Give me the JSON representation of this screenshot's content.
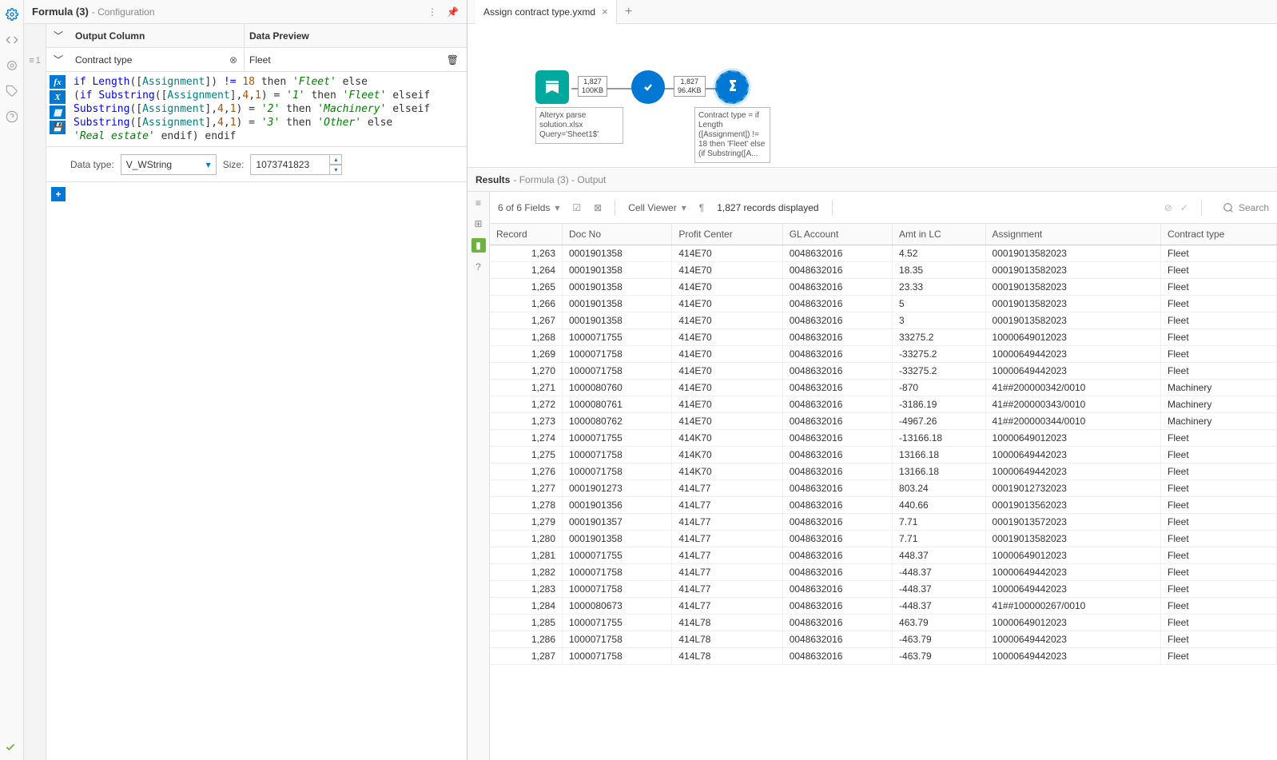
{
  "config": {
    "title": "Formula (3)",
    "subtitle": " - Configuration",
    "output_header": "Output Column",
    "preview_header": "Data Preview",
    "output_value": "Contract type",
    "preview_value": "Fleet",
    "row_num": "1",
    "datatype_label": "Data type:",
    "datatype_value": "V_WString",
    "size_label": "Size:",
    "size_value": "1073741823"
  },
  "formula_tokens": [
    [
      [
        "kw-kw",
        "if "
      ],
      [
        "kw-fn",
        "Length"
      ],
      [
        "",
        "(["
      ],
      [
        "kw-field",
        "Assignment"
      ],
      [
        "",
        "]) "
      ],
      [
        "kw-kw",
        "!= "
      ],
      [
        "kw-num",
        "18"
      ],
      [
        "",
        " then "
      ],
      [
        "kw-str",
        "'Fleet'"
      ],
      [
        "",
        " else"
      ]
    ],
    [
      [
        "",
        "("
      ],
      [
        "kw-kw",
        "if "
      ],
      [
        "kw-fn",
        "Substring"
      ],
      [
        "",
        "(["
      ],
      [
        "kw-field",
        "Assignment"
      ],
      [
        "",
        "],"
      ],
      [
        "kw-num",
        "4"
      ],
      [
        "",
        ","
      ],
      [
        "kw-num",
        "1"
      ],
      [
        "",
        ") = "
      ],
      [
        "kw-str",
        "'1'"
      ],
      [
        "",
        " then "
      ],
      [
        "kw-str",
        "'Fleet'"
      ],
      [
        "",
        " elseif"
      ]
    ],
    [
      [
        "kw-fn",
        "Substring"
      ],
      [
        "",
        "(["
      ],
      [
        "kw-field",
        "Assignment"
      ],
      [
        "",
        "],"
      ],
      [
        "kw-num",
        "4"
      ],
      [
        "",
        ","
      ],
      [
        "kw-num",
        "1"
      ],
      [
        "",
        ") = "
      ],
      [
        "kw-str",
        "'2'"
      ],
      [
        "",
        " then "
      ],
      [
        "kw-str",
        "'Machinery'"
      ],
      [
        "",
        " elseif"
      ]
    ],
    [
      [
        "kw-fn",
        "Substring"
      ],
      [
        "",
        "(["
      ],
      [
        "kw-field",
        "Assignment"
      ],
      [
        "",
        "],"
      ],
      [
        "kw-num",
        "4"
      ],
      [
        "",
        ","
      ],
      [
        "kw-num",
        "1"
      ],
      [
        "",
        ") = "
      ],
      [
        "kw-str",
        "'3'"
      ],
      [
        "",
        " then "
      ],
      [
        "kw-str",
        "'Other'"
      ],
      [
        "",
        " else"
      ]
    ],
    [
      [
        "kw-str",
        "'Real estate'"
      ],
      [
        "",
        " endif) endif"
      ]
    ]
  ],
  "tab": {
    "name": "Assign contract type.yxmd"
  },
  "canvas": {
    "input_caption": "Alteryx parse solution.xlsx\nQuery='Sheet1$'",
    "formula_caption": "Contract type = if Length ([Assignment]) != 18 then 'Fleet' else\n(if Substring([A...",
    "conn1_top": "1,827",
    "conn1_bot": "100KB",
    "conn2_top": "1,827",
    "conn2_bot": "96.4KB"
  },
  "results": {
    "title": "Results",
    "subtitle": " - Formula (3) - Output",
    "fields_label": "6 of 6 Fields",
    "cellviewer_label": "Cell Viewer",
    "records_label": "1,827 records displayed",
    "search_placeholder": "Search",
    "columns": [
      "Record",
      "Doc No",
      "Profit Center",
      "GL Account",
      "Amt in LC",
      "Assignment",
      "Contract type"
    ],
    "rows": [
      [
        "1,263",
        "0001901358",
        "414E70",
        "0048632016",
        "4.52",
        "00019013582023",
        "Fleet"
      ],
      [
        "1,264",
        "0001901358",
        "414E70",
        "0048632016",
        "18.35",
        "00019013582023",
        "Fleet"
      ],
      [
        "1,265",
        "0001901358",
        "414E70",
        "0048632016",
        "23.33",
        "00019013582023",
        "Fleet"
      ],
      [
        "1,266",
        "0001901358",
        "414E70",
        "0048632016",
        "5",
        "00019013582023",
        "Fleet"
      ],
      [
        "1,267",
        "0001901358",
        "414E70",
        "0048632016",
        "3",
        "00019013582023",
        "Fleet"
      ],
      [
        "1,268",
        "1000071755",
        "414E70",
        "0048632016",
        "33275.2",
        "10000649012023",
        "Fleet"
      ],
      [
        "1,269",
        "1000071758",
        "414E70",
        "0048632016",
        "-33275.2",
        "10000649442023",
        "Fleet"
      ],
      [
        "1,270",
        "1000071758",
        "414E70",
        "0048632016",
        "-33275.2",
        "10000649442023",
        "Fleet"
      ],
      [
        "1,271",
        "1000080760",
        "414E70",
        "0048632016",
        "-870",
        "41##200000342/0010",
        "Machinery"
      ],
      [
        "1,272",
        "1000080761",
        "414E70",
        "0048632016",
        "-3186.19",
        "41##200000343/0010",
        "Machinery"
      ],
      [
        "1,273",
        "1000080762",
        "414E70",
        "0048632016",
        "-4967.26",
        "41##200000344/0010",
        "Machinery"
      ],
      [
        "1,274",
        "1000071755",
        "414K70",
        "0048632016",
        "-13166.18",
        "10000649012023",
        "Fleet"
      ],
      [
        "1,275",
        "1000071758",
        "414K70",
        "0048632016",
        "13166.18",
        "10000649442023",
        "Fleet"
      ],
      [
        "1,276",
        "1000071758",
        "414K70",
        "0048632016",
        "13166.18",
        "10000649442023",
        "Fleet"
      ],
      [
        "1,277",
        "0001901273",
        "414L77",
        "0048632016",
        "803.24",
        "00019012732023",
        "Fleet"
      ],
      [
        "1,278",
        "0001901356",
        "414L77",
        "0048632016",
        "440.66",
        "00019013562023",
        "Fleet"
      ],
      [
        "1,279",
        "0001901357",
        "414L77",
        "0048632016",
        "7.71",
        "00019013572023",
        "Fleet"
      ],
      [
        "1,280",
        "0001901358",
        "414L77",
        "0048632016",
        "7.71",
        "00019013582023",
        "Fleet"
      ],
      [
        "1,281",
        "1000071755",
        "414L77",
        "0048632016",
        "448.37",
        "10000649012023",
        "Fleet"
      ],
      [
        "1,282",
        "1000071758",
        "414L77",
        "0048632016",
        "-448.37",
        "10000649442023",
        "Fleet"
      ],
      [
        "1,283",
        "1000071758",
        "414L77",
        "0048632016",
        "-448.37",
        "10000649442023",
        "Fleet"
      ],
      [
        "1,284",
        "1000080673",
        "414L77",
        "0048632016",
        "-448.37",
        "41##100000267/0010",
        "Fleet"
      ],
      [
        "1,285",
        "1000071755",
        "414L78",
        "0048632016",
        "463.79",
        "10000649012023",
        "Fleet"
      ],
      [
        "1,286",
        "1000071758",
        "414L78",
        "0048632016",
        "-463.79",
        "10000649442023",
        "Fleet"
      ],
      [
        "1,287",
        "1000071758",
        "414L78",
        "0048632016",
        "-463.79",
        "10000649442023",
        "Fleet"
      ]
    ]
  }
}
